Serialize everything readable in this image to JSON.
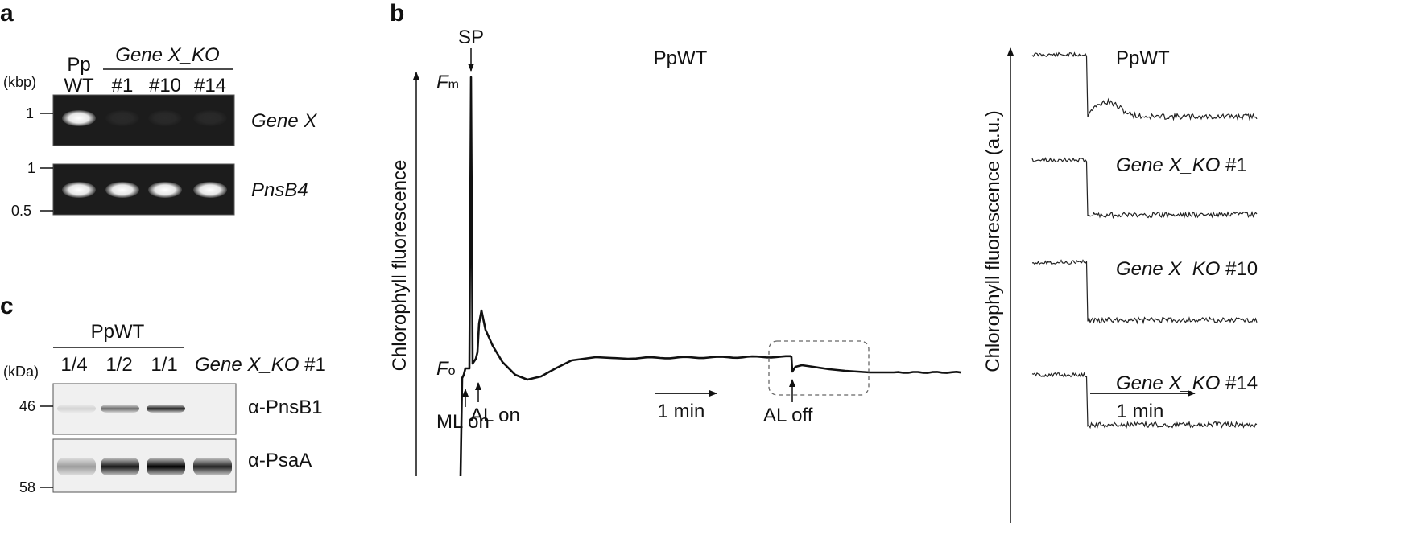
{
  "panel_a": {
    "letter": "a",
    "unit": "(kbp)",
    "lane_header_group": "Gene X_KO",
    "wt_line1": "Pp",
    "wt_line2": "WT",
    "lanes": [
      "#1",
      "#10",
      "#14"
    ],
    "gel_top": {
      "label": "Gene X",
      "ticks": [
        "1"
      ],
      "bands": [
        1,
        0,
        0,
        0
      ]
    },
    "gel_bottom": {
      "label": "PnsB4",
      "ticks": [
        "1",
        "0.5"
      ],
      "bands": [
        1,
        1,
        1,
        1
      ]
    }
  },
  "panel_b": {
    "letter": "b",
    "title": "PpWT",
    "ylabel": "Chlorophyll fluorescence",
    "fm_main": "F",
    "fm_sub": "m",
    "fo_main": "F",
    "fo_sub": "o",
    "sp_label": "SP",
    "al_on": "AL on",
    "al_off": "AL off",
    "ml_on": "ML on",
    "time_scale": "1 min",
    "right_ylabel": "Chlorophyll fluorescence (a.u.)",
    "right_time_scale": "1 min",
    "traces": [
      {
        "italic": "",
        "plain": "PpWT"
      },
      {
        "italic": "Gene X_KO",
        "plain": " #1"
      },
      {
        "italic": "Gene X_KO",
        "plain": " #10"
      },
      {
        "italic": "Gene X_KO",
        "plain": " #14"
      }
    ]
  },
  "panel_c": {
    "letter": "c",
    "unit": "(kDa)",
    "group": "PpWT",
    "dilutions": [
      "1/4",
      "1/2",
      "1/1"
    ],
    "ko_italic": "Gene X_KO",
    "ko_plain": " #1",
    "blot_top": {
      "label": "α-PnsB1",
      "marker": "46",
      "intensity": [
        0.12,
        0.55,
        0.85,
        0.0
      ]
    },
    "blot_bottom": {
      "label": "α-PsaA",
      "marker": "58",
      "intensity": [
        0.35,
        0.9,
        1.0,
        0.85
      ]
    }
  }
}
